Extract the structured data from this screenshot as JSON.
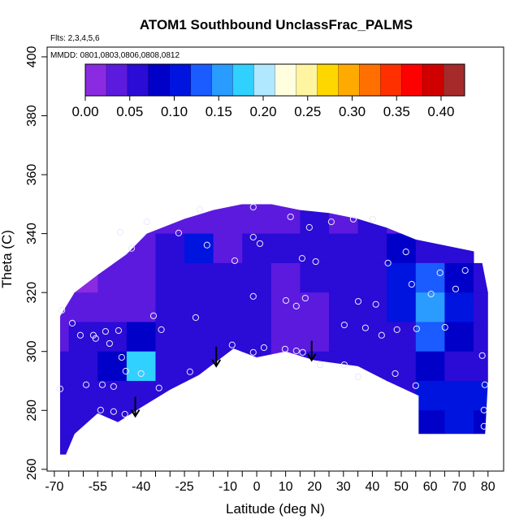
{
  "chart_data": {
    "type": "curtain",
    "title": "ATOM1 Southbound UnclassFrac_PALMS",
    "flights": "Flts: 2,3,4,5,6",
    "dates": "MMDD: 0801,0803,0806,0808,0812",
    "xlabel": "Latitude (deg N)",
    "ylabel": "Theta (C)",
    "xlim": [
      -72.5,
      85.4
    ],
    "ylim": [
      259.4,
      403.3
    ],
    "xticks": [
      -70,
      -55,
      -40,
      -25,
      -10,
      0,
      10,
      20,
      30,
      40,
      50,
      60,
      70,
      80
    ],
    "xminorticks": [
      -65,
      -60,
      -50,
      -45,
      -35,
      -30,
      -20,
      -15,
      -5,
      5,
      15,
      25,
      35,
      45,
      55,
      65,
      75
    ],
    "yticks": [
      260,
      280,
      300,
      320,
      340,
      360,
      380,
      400
    ],
    "clim": [
      0,
      0.4265
    ],
    "cticks": [
      {
        "value": 0,
        "label": "0.00"
      },
      {
        "value": 0.05,
        "label": "0.05"
      },
      {
        "value": 0.1,
        "label": "0.10"
      },
      {
        "value": 0.15,
        "label": "0.15"
      },
      {
        "value": 0.2,
        "label": "0.20"
      },
      {
        "value": 0.25,
        "label": "0.25"
      },
      {
        "value": 0.3,
        "label": "0.30"
      },
      {
        "value": 0.35,
        "label": "0.35"
      },
      {
        "value": 0.4,
        "label": "0.40"
      }
    ],
    "colors": [
      "#8a2be2",
      "#5c1adf",
      "#2b0bd6",
      "#0000c8",
      "#0014e0",
      "#1a5cff",
      "#2a9bff",
      "#30d0ff",
      "#b0e8ff",
      "#ffffe0",
      "#fff5a0",
      "#ffd700",
      "#ffaa00",
      "#ff7000",
      "#ff3000",
      "#ff0000",
      "#d00000",
      "#a52a2a"
    ],
    "grid_x": [
      -70,
      -60,
      -50,
      -40,
      -30,
      -20,
      -10,
      0,
      10,
      20,
      30,
      40,
      50,
      60,
      70,
      80
    ],
    "grid_y": [
      345,
      335,
      325,
      315,
      305,
      295,
      285,
      275,
      265
    ],
    "field": [
      [
        null,
        null,
        null,
        0.03,
        0.03,
        0.03,
        0.04,
        0.03,
        0.04,
        0.05,
        0.04,
        0.05,
        0.03,
        0.04,
        null,
        null
      ],
      [
        null,
        0.02,
        0.03,
        0.04,
        0.06,
        0.1,
        0.04,
        0.06,
        0.05,
        0.06,
        0.05,
        0.07,
        0.08,
        0.06,
        0.05,
        null
      ],
      [
        0.03,
        0.02,
        0.03,
        0.04,
        0.06,
        0.06,
        0.07,
        0.06,
        0.04,
        0.05,
        0.06,
        0.07,
        0.1,
        0.12,
        0.08,
        0.06
      ],
      [
        0.03,
        0.03,
        0.03,
        0.04,
        0.05,
        0.05,
        0.06,
        0.07,
        0.03,
        0.03,
        0.06,
        0.07,
        0.11,
        0.15,
        0.1,
        0.07
      ],
      [
        0.04,
        0.06,
        0.07,
        0.09,
        0.05,
        0.05,
        0.06,
        0.05,
        0.03,
        0.04,
        0.05,
        0.06,
        0.07,
        0.13,
        0.09,
        0.06
      ],
      [
        0.05,
        0.06,
        0.08,
        0.18,
        0.06,
        0.05,
        0.05,
        0.05,
        0.04,
        0.05,
        0.05,
        0.06,
        0.06,
        0.08,
        0.06,
        0.05
      ],
      [
        0.05,
        0.06,
        0.07,
        0.06,
        0.05,
        0.05,
        0.05,
        0.05,
        0.05,
        0.05,
        0.05,
        0.06,
        0.06,
        0.1,
        0.11,
        0.1
      ],
      [
        0.05,
        0.05,
        0.05,
        0.05,
        0.05,
        0.05,
        0.05,
        0.05,
        0.05,
        0.05,
        0.05,
        0.05,
        0.06,
        0.09,
        0.1,
        0.09
      ],
      [
        0.05,
        0.05,
        0.05,
        0.05,
        0.05,
        0.05,
        0.05,
        0.05,
        0.05,
        0.05,
        0.05,
        0.05,
        0.06,
        0.09,
        0.1,
        0.09
      ]
    ],
    "boundary": {
      "x": [
        -68,
        -68,
        -63,
        -55,
        -45,
        -38,
        -25,
        -15,
        -5,
        5,
        15,
        25,
        35,
        45,
        55,
        65,
        75,
        78,
        80,
        80,
        79,
        56,
        56,
        45,
        35,
        20,
        10,
        0,
        -8,
        -20,
        -30,
        -40,
        -48,
        -55,
        -63,
        -66
      ],
      "y": [
        265,
        312,
        320,
        326,
        333,
        340,
        345,
        348,
        350,
        350,
        348,
        347,
        345,
        342,
        338,
        336,
        334,
        330,
        320,
        290,
        272,
        272,
        285,
        290,
        295,
        297,
        300,
        298,
        301,
        292,
        287,
        281,
        276,
        279,
        272,
        265
      ]
    },
    "points": {
      "x": [
        -67.4,
        -68,
        -63.8,
        -61,
        -56.5,
        -55.7,
        -52.3,
        -47.8,
        -50.9,
        -46.7,
        -45.3,
        -53.4,
        -49.5,
        -59,
        -54,
        -49.5,
        -45.6,
        -40,
        -35.7,
        -33,
        -33.8,
        -23.1,
        -21.1,
        -17.2,
        -27,
        -38,
        -47.2,
        -43.3,
        -19.7,
        -1.2,
        -7.6,
        -8.5,
        -1.2,
        -1.2,
        -1.2,
        1.1,
        2.5,
        9.8,
        10.1,
        11.7,
        13.7,
        15.7,
        16.8,
        20.4,
        18.2,
        13.7,
        15.9,
        21.9,
        25.8,
        30.3,
        30.3,
        35.1,
        35.1,
        37.6,
        41.2,
        43.2,
        45.4,
        47.9,
        48.5,
        51.6,
        53.6,
        55,
        55.3,
        60.3,
        63.4,
        65.1,
        68.8,
        72.1,
        78,
        78.9,
        78.6,
        78.6,
        40.1,
        33.4
      ],
      "y": [
        314,
        287.3,
        309.6,
        305.5,
        305.5,
        304.4,
        306.8,
        307.1,
        302.7,
        298,
        293.3,
        288.7,
        288.1,
        288.7,
        280.1,
        279.6,
        278.7,
        292.5,
        312.1,
        307.4,
        287.6,
        293.1,
        311.5,
        336.1,
        340.2,
        344,
        340.5,
        335,
        348.2,
        349,
        330.8,
        302.2,
        299.7,
        318.7,
        338.8,
        336.6,
        301.3,
        300.8,
        317.3,
        345.7,
        315.4,
        331.6,
        318.1,
        330.5,
        342.1,
        300.2,
        299.7,
        295.5,
        344,
        295.5,
        309,
        317,
        291.4,
        308,
        316,
        305.5,
        330,
        292.5,
        307.4,
        333.8,
        322.8,
        288.4,
        307.7,
        319.5,
        326.7,
        308.2,
        321.2,
        327.5,
        298.6,
        288.7,
        280.1,
        274.6,
        344.9,
        344.9
      ]
    },
    "arrows": {
      "x": [
        -42,
        -14,
        19
      ],
      "y": [
        278,
        295,
        297
      ]
    }
  }
}
